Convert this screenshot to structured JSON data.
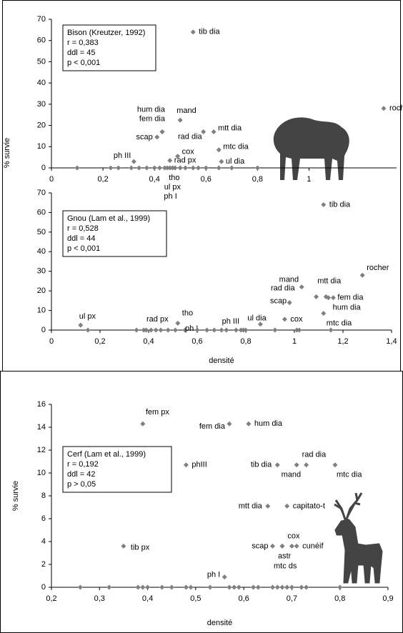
{
  "chart_data": [
    {
      "type": "scatter",
      "title": "Bison (Kreutzer, 1992)",
      "stats": [
        "r = 0,383",
        "ddl = 45",
        "p < 0,001"
      ],
      "ylabel": "% survie",
      "color": "#808080",
      "x": [
        0.55,
        1.29,
        0.43,
        0.43,
        0.41,
        0.5,
        0.59,
        0.63,
        0.65,
        0.66,
        0.49,
        0.46,
        0.32,
        0.45,
        0.46,
        0.47,
        0.1,
        0.23,
        0.26,
        0.31,
        0.34,
        0.37,
        0.4,
        0.42,
        0.44,
        0.48,
        0.5,
        0.52,
        0.55,
        0.57,
        0.6,
        0.65,
        0.7,
        0.8
      ],
      "y": [
        64,
        28,
        17,
        17,
        14.5,
        22.5,
        17,
        17,
        8.5,
        3,
        5.5,
        3.5,
        3,
        0,
        0,
        0,
        0,
        0,
        0,
        0,
        0,
        0,
        0,
        0,
        0,
        0,
        0,
        0,
        0,
        0,
        0,
        0,
        0,
        0
      ],
      "labels": [
        "tib dia",
        "rocher",
        "hum dia",
        "fem dia",
        "scap",
        "mand",
        "rad dia",
        "mtt dia",
        "mtc dia",
        "ul dia",
        "cox",
        "rad px",
        "ph III",
        "tho",
        "ul px",
        "ph I",
        null,
        null,
        null,
        null,
        null,
        null,
        null,
        null,
        null,
        null,
        null,
        null,
        null,
        null,
        null,
        null,
        null,
        null
      ],
      "xlim": [
        0,
        1.34
      ],
      "ylim": [
        0,
        70
      ],
      "xticks": [
        0,
        {
          "value": 0.2,
          "label": "0,2"
        },
        {
          "value": 0.4,
          "label": "0,4"
        },
        {
          "value": 0.6,
          "label": "0,6"
        },
        {
          "value": 0.8,
          "label": "0,8"
        },
        1
      ],
      "yticks": [
        0,
        10,
        20,
        30,
        40,
        50,
        60,
        70
      ]
    },
    {
      "type": "scatter",
      "title": "Gnou (Lam et al., 1999)",
      "stats": [
        "r = 0,528",
        "ddl = 44",
        "p < 0,001"
      ],
      "xlabel": "densité",
      "color": "#808080",
      "x": [
        1.12,
        1.28,
        1.03,
        1.13,
        1.09,
        1.16,
        1.14,
        0.98,
        1.12,
        0.96,
        0.86,
        0.12,
        0.45,
        0.52,
        0.55,
        0.79,
        0.15,
        0.35,
        0.38,
        0.39,
        0.41,
        0.43,
        0.48,
        0.51,
        0.6,
        0.64,
        0.67,
        0.7,
        0.72,
        0.76,
        0.78,
        0.8,
        0.92,
        1.01,
        1.02,
        1.15
      ],
      "y": [
        64,
        28,
        22,
        17,
        17,
        16.5,
        16.5,
        14,
        8.5,
        5.5,
        3,
        2.5,
        0,
        3.5,
        0,
        0,
        0,
        0,
        0,
        0,
        0,
        0,
        0,
        0,
        0,
        0,
        0,
        0,
        0,
        0,
        0,
        0,
        0,
        0,
        0,
        0
      ],
      "labels": [
        "tib dia",
        "rocher",
        "mand",
        "mtt dia",
        "rad dia",
        "fem dia",
        "hum dia",
        "scap",
        "mtc dia",
        "cox",
        "ul dia",
        "ul px",
        "rad px",
        "tho",
        "ph I",
        "ph III",
        null,
        null,
        null,
        null,
        null,
        null,
        null,
        null,
        null,
        null,
        null,
        null,
        null,
        null,
        null,
        null,
        null,
        null,
        null,
        null
      ],
      "xlim": [
        0,
        1.4
      ],
      "ylim": [
        0,
        70
      ],
      "xticks": [
        0,
        {
          "value": 0.2,
          "label": "0,2"
        },
        {
          "value": 0.4,
          "label": "0,4"
        },
        {
          "value": 0.6,
          "label": "0,6"
        },
        {
          "value": 0.8,
          "label": "0,8"
        },
        1,
        {
          "value": 1.2,
          "label": "1,2"
        },
        {
          "value": 1.4,
          "label": "1,4"
        }
      ],
      "yticks": [
        0,
        10,
        20,
        30,
        40,
        50,
        60,
        70
      ]
    },
    {
      "type": "scatter",
      "title": "Cerf (Lam et al., 1999)",
      "stats": [
        "r = 0,192",
        "ddl = 42",
        "p > 0,05"
      ],
      "xlabel": "densité",
      "ylabel": "% survie",
      "color": "#808080",
      "x": [
        0.39,
        0.57,
        0.61,
        0.48,
        0.67,
        0.71,
        0.73,
        0.79,
        0.65,
        0.69,
        0.35,
        0.66,
        0.68,
        0.68,
        0.7,
        0.71,
        0.56,
        0.26,
        0.32,
        0.38,
        0.39,
        0.4,
        0.43,
        0.45,
        0.48,
        0.49,
        0.53,
        0.57,
        0.58,
        0.59,
        0.62,
        0.63,
        0.66,
        0.67,
        0.68,
        0.69,
        0.7,
        0.72,
        0.73,
        0.8
      ],
      "y": [
        14.3,
        14.3,
        14.3,
        10.7,
        10.7,
        10.7,
        10.7,
        10.7,
        7.1,
        7.1,
        3.6,
        3.6,
        3.6,
        3.6,
        3.6,
        3.6,
        0.9,
        0,
        0,
        0,
        0,
        0,
        0,
        0,
        0,
        0,
        0,
        0,
        0,
        0,
        0,
        0,
        0,
        0,
        0,
        0,
        0,
        0,
        0,
        0
      ],
      "labels": [
        "fem px",
        "fem dia",
        "hum dia",
        "phIII",
        "tib dia",
        "mand",
        "rad dia",
        "mtc dia",
        "mtt dia",
        "capitato-t",
        "tib px",
        "scap",
        "astr",
        "mtc ds",
        "cox",
        "cunéif",
        "ph I",
        null,
        null,
        null,
        null,
        null,
        null,
        null,
        null,
        null,
        null,
        null,
        null,
        null,
        null,
        null,
        null,
        null,
        null,
        null,
        null,
        null,
        null,
        null
      ],
      "xlim": [
        0.2,
        0.9
      ],
      "ylim": [
        0,
        16
      ],
      "xticks": [
        {
          "value": 0.2,
          "label": "0,2"
        },
        {
          "value": 0.3,
          "label": "0,3"
        },
        {
          "value": 0.4,
          "label": "0,4"
        },
        {
          "value": 0.5,
          "label": "0,5"
        },
        {
          "value": 0.6,
          "label": "0,6"
        },
        {
          "value": 0.7,
          "label": "0,7"
        },
        {
          "value": 0.8,
          "label": "0,8"
        },
        {
          "value": 0.9,
          "label": "0,9"
        }
      ],
      "yticks": [
        0,
        2,
        4,
        6,
        8,
        10,
        12,
        14,
        16
      ]
    }
  ]
}
